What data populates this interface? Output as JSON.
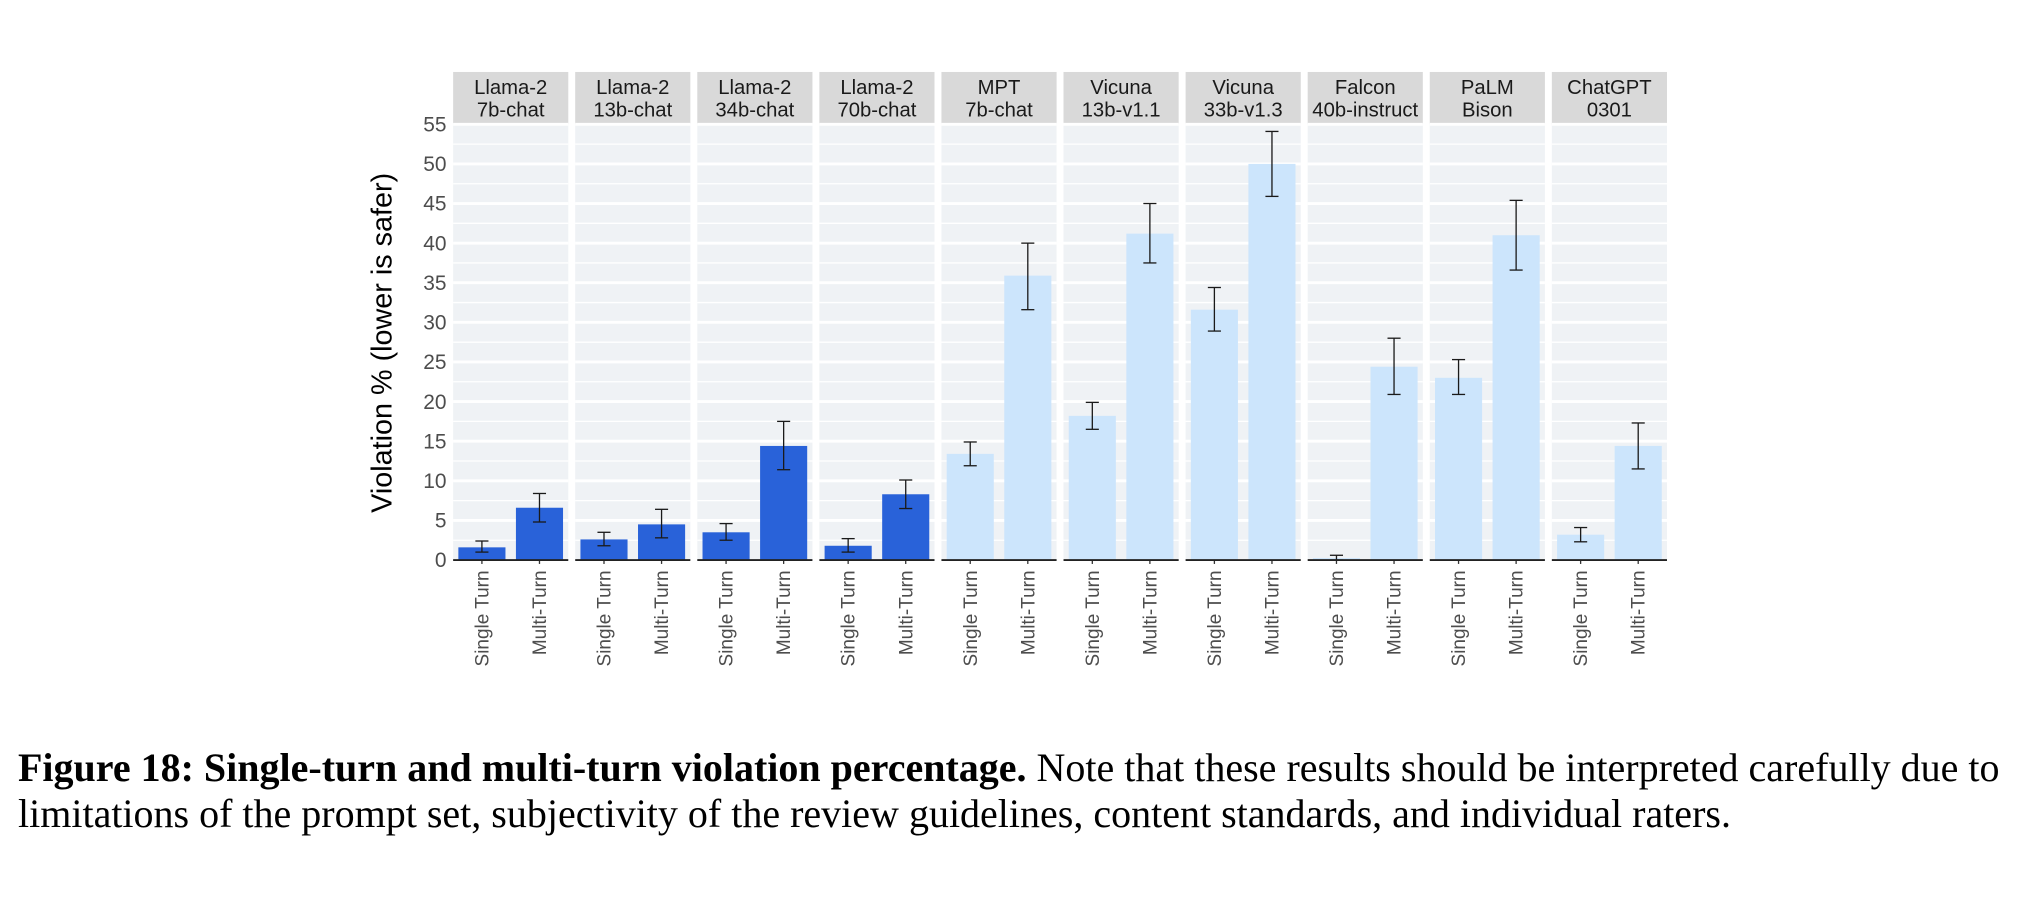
{
  "colors": {
    "llama_bar": "#2962D9",
    "other_bar": "#CCE5FC",
    "panel_bg": "#EFF2F5",
    "strip_bg": "#D9D9D9",
    "grid": "#ffffff",
    "errorbar": "#1a1a1a"
  },
  "chart_data": {
    "type": "bar",
    "title": "",
    "ylabel": "Violation % (lower is safer)",
    "xlabel": "",
    "ylim": [
      0,
      55
    ],
    "yticks": [
      0,
      5,
      10,
      15,
      20,
      25,
      30,
      35,
      40,
      45,
      50,
      55
    ],
    "grid": true,
    "facets": "by model",
    "categories": [
      "Single Turn",
      "Multi-Turn"
    ],
    "panels": [
      {
        "label_line1": "Llama-2",
        "label_line2": "7b-chat",
        "group": "llama",
        "values": [
          1.6,
          6.6
        ],
        "err_low": [
          1.0,
          4.8
        ],
        "err_high": [
          2.4,
          8.4
        ]
      },
      {
        "label_line1": "Llama-2",
        "label_line2": "13b-chat",
        "group": "llama",
        "values": [
          2.6,
          4.5
        ],
        "err_low": [
          1.8,
          2.8
        ],
        "err_high": [
          3.5,
          6.4
        ]
      },
      {
        "label_line1": "Llama-2",
        "label_line2": "34b-chat",
        "group": "llama",
        "values": [
          3.5,
          14.4
        ],
        "err_low": [
          2.5,
          11.4
        ],
        "err_high": [
          4.6,
          17.5
        ]
      },
      {
        "label_line1": "Llama-2",
        "label_line2": "70b-chat",
        "group": "llama",
        "values": [
          1.8,
          8.3
        ],
        "err_low": [
          1.0,
          6.5
        ],
        "err_high": [
          2.7,
          10.1
        ]
      },
      {
        "label_line1": "MPT",
        "label_line2": "7b-chat",
        "group": "other",
        "values": [
          13.4,
          35.9
        ],
        "err_low": [
          11.9,
          31.6
        ],
        "err_high": [
          14.9,
          40.0
        ]
      },
      {
        "label_line1": "Vicuna",
        "label_line2": "13b-v1.1",
        "group": "other",
        "values": [
          18.2,
          41.2
        ],
        "err_low": [
          16.5,
          37.5
        ],
        "err_high": [
          19.9,
          45.0
        ]
      },
      {
        "label_line1": "Vicuna",
        "label_line2": "33b-v1.3",
        "group": "other",
        "values": [
          31.6,
          50.0
        ],
        "err_low": [
          28.9,
          45.9
        ],
        "err_high": [
          34.4,
          54.1
        ]
      },
      {
        "label_line1": "Falcon",
        "label_line2": "40b-instruct",
        "group": "other",
        "values": [
          0.25,
          24.4
        ],
        "err_low": [
          0.0,
          20.9
        ],
        "err_high": [
          0.6,
          28.0
        ]
      },
      {
        "label_line1": "PaLM",
        "label_line2": "Bison",
        "group": "other",
        "values": [
          23.0,
          41.0
        ],
        "err_low": [
          20.9,
          36.6
        ],
        "err_high": [
          25.3,
          45.4
        ]
      },
      {
        "label_line1": "ChatGPT",
        "label_line2": "0301",
        "group": "other",
        "values": [
          3.2,
          14.4
        ],
        "err_low": [
          2.3,
          11.5
        ],
        "err_high": [
          4.1,
          17.3
        ]
      }
    ]
  },
  "caption": {
    "bold": "Figure 18: Single-turn and multi-turn violation percentage.",
    "rest": " Note that these results should be interpreted carefully due to limitations of the prompt set, subjectivity of the review guidelines, content standards, and individual raters."
  }
}
